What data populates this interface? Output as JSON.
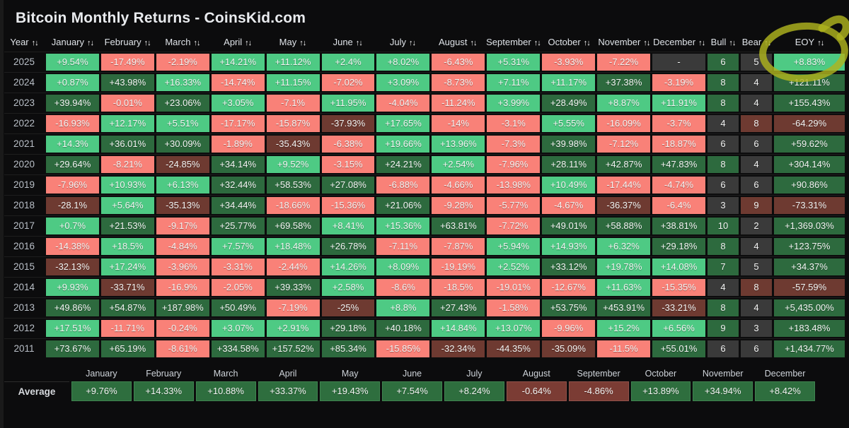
{
  "title": "Bitcoin Monthly Returns - CoinsKid.com",
  "icons": {
    "sort_arrows": "↑↓"
  },
  "colors": {
    "background": "#0c0c0d",
    "gain_light": "#4eca84",
    "gain_dark": "#2d6a3e",
    "loss_light": "#f98178",
    "loss_dark": "#6e3a31",
    "neutral": "#3a3a3a",
    "avg_gain": "#2e6e3e",
    "avg_loss": "#7b3c34",
    "annotation_yellow": "#aeb31f"
  },
  "chart_data": {
    "type": "table",
    "title": "Bitcoin Monthly Returns - CoinsKid.com",
    "columns": [
      "Year",
      "January",
      "February",
      "March",
      "April",
      "May",
      "June",
      "July",
      "August",
      "September",
      "October",
      "November",
      "December",
      "Bull",
      "Bear",
      "EOY"
    ],
    "rows": [
      {
        "year": "2025",
        "months": [
          "+9.54%",
          "-17.49%",
          "-2.19%",
          "+14.21%",
          "+11.12%",
          "+2.4%",
          "+8.02%",
          "-6.43%",
          "+5.31%",
          "-3.93%",
          "-7.22%",
          "-"
        ],
        "bull": "6",
        "bear": "5",
        "eoy": "+8.83%"
      },
      {
        "year": "2024",
        "months": [
          "+0.87%",
          "+43.98%",
          "+16.33%",
          "-14.74%",
          "+11.15%",
          "-7.02%",
          "+3.09%",
          "-8.73%",
          "+7.11%",
          "+11.17%",
          "+37.38%",
          "-3.19%"
        ],
        "bull": "8",
        "bear": "4",
        "eoy": "+121.11%"
      },
      {
        "year": "2023",
        "months": [
          "+39.94%",
          "-0.01%",
          "+23.06%",
          "+3.05%",
          "-7.1%",
          "+11.95%",
          "-4.04%",
          "-11.24%",
          "+3.99%",
          "+28.49%",
          "+8.87%",
          "+11.91%"
        ],
        "bull": "8",
        "bear": "4",
        "eoy": "+155.43%"
      },
      {
        "year": "2022",
        "months": [
          "-16.93%",
          "+12.17%",
          "+5.51%",
          "-17.17%",
          "-15.87%",
          "-37.93%",
          "+17.65%",
          "-14%",
          "-3.1%",
          "+5.55%",
          "-16.09%",
          "-3.7%"
        ],
        "bull": "4",
        "bear": "8",
        "eoy": "-64.29%"
      },
      {
        "year": "2021",
        "months": [
          "+14.3%",
          "+36.01%",
          "+30.09%",
          "-1.89%",
          "-35.43%",
          "-6.38%",
          "+19.66%",
          "+13.96%",
          "-7.3%",
          "+39.98%",
          "-7.12%",
          "-18.87%"
        ],
        "bull": "6",
        "bear": "6",
        "eoy": "+59.62%"
      },
      {
        "year": "2020",
        "months": [
          "+29.64%",
          "-8.21%",
          "-24.85%",
          "+34.14%",
          "+9.52%",
          "-3.15%",
          "+24.21%",
          "+2.54%",
          "-7.96%",
          "+28.11%",
          "+42.87%",
          "+47.83%"
        ],
        "bull": "8",
        "bear": "4",
        "eoy": "+304.14%"
      },
      {
        "year": "2019",
        "months": [
          "-7.96%",
          "+10.93%",
          "+6.13%",
          "+32.44%",
          "+58.53%",
          "+27.08%",
          "-6.88%",
          "-4.66%",
          "-13.98%",
          "+10.49%",
          "-17.44%",
          "-4.74%"
        ],
        "bull": "6",
        "bear": "6",
        "eoy": "+90.86%"
      },
      {
        "year": "2018",
        "months": [
          "-28.1%",
          "+5.64%",
          "-35.13%",
          "+34.44%",
          "-18.66%",
          "-15.36%",
          "+21.06%",
          "-9.28%",
          "-5.77%",
          "-4.67%",
          "-36.37%",
          "-6.4%"
        ],
        "bull": "3",
        "bear": "9",
        "eoy": "-73.31%"
      },
      {
        "year": "2017",
        "months": [
          "+0.7%",
          "+21.53%",
          "-9.17%",
          "+25.77%",
          "+69.58%",
          "+8.41%",
          "+15.36%",
          "+63.81%",
          "-7.72%",
          "+49.01%",
          "+58.88%",
          "+38.81%"
        ],
        "bull": "10",
        "bear": "2",
        "eoy": "+1,369.03%"
      },
      {
        "year": "2016",
        "months": [
          "-14.38%",
          "+18.5%",
          "-4.84%",
          "+7.57%",
          "+18.48%",
          "+26.78%",
          "-7.11%",
          "-7.87%",
          "+5.94%",
          "+14.93%",
          "+6.32%",
          "+29.18%"
        ],
        "bull": "8",
        "bear": "4",
        "eoy": "+123.75%"
      },
      {
        "year": "2015",
        "months": [
          "-32.13%",
          "+17.24%",
          "-3.96%",
          "-3.31%",
          "-2.44%",
          "+14.26%",
          "+8.09%",
          "-19.19%",
          "+2.52%",
          "+33.12%",
          "+19.78%",
          "+14.08%"
        ],
        "bull": "7",
        "bear": "5",
        "eoy": "+34.37%"
      },
      {
        "year": "2014",
        "months": [
          "+9.93%",
          "-33.71%",
          "-16.9%",
          "-2.05%",
          "+39.33%",
          "+2.58%",
          "-8.6%",
          "-18.5%",
          "-19.01%",
          "-12.67%",
          "+11.63%",
          "-15.35%"
        ],
        "bull": "4",
        "bear": "8",
        "eoy": "-57.59%"
      },
      {
        "year": "2013",
        "months": [
          "+49.86%",
          "+54.87%",
          "+187.98%",
          "+50.49%",
          "-7.19%",
          "-25%",
          "+8.8%",
          "+27.43%",
          "-1.58%",
          "+53.75%",
          "+453.91%",
          "-33.21%"
        ],
        "bull": "8",
        "bear": "4",
        "eoy": "+5,435.00%"
      },
      {
        "year": "2012",
        "months": [
          "+17.51%",
          "-11.71%",
          "-0.24%",
          "+3.07%",
          "+2.91%",
          "+29.18%",
          "+40.18%",
          "+14.84%",
          "+13.07%",
          "-9.96%",
          "+15.2%",
          "+6.56%"
        ],
        "bull": "9",
        "bear": "3",
        "eoy": "+183.48%"
      },
      {
        "year": "2011",
        "months": [
          "+73.67%",
          "+65.19%",
          "-8.61%",
          "+334.58%",
          "+157.52%",
          "+85.34%",
          "-15.85%",
          "-32.34%",
          "-44.35%",
          "-35.09%",
          "-11.5%",
          "+55.01%"
        ],
        "bull": "6",
        "bear": "6",
        "eoy": "+1,434.77%"
      }
    ],
    "average": {
      "label": "Average",
      "months": [
        "January",
        "February",
        "March",
        "April",
        "May",
        "June",
        "July",
        "August",
        "September",
        "October",
        "November",
        "December"
      ],
      "values": [
        "+9.76%",
        "+14.33%",
        "+10.88%",
        "+33.37%",
        "+19.43%",
        "+7.54%",
        "+8.24%",
        "-0.64%",
        "-4.86%",
        "+13.89%",
        "+34.94%",
        "+8.42%"
      ]
    }
  },
  "annotation": {
    "description": "hand-drawn yellow circle with arrow highlighting EOY column header and 2025 EOY value +8.83%"
  }
}
